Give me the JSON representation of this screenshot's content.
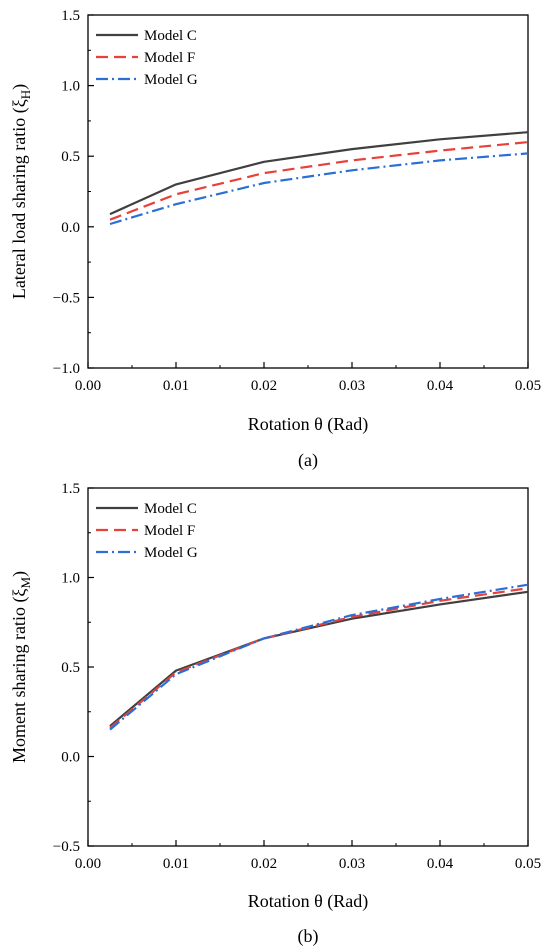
{
  "chart_data": [
    {
      "type": "line",
      "panel_label": "(a)",
      "xlabel": "Rotation θ (Rad)",
      "ylabel": "Lateral load sharing ratio (ξ",
      "ylabel_sub": "H",
      "ylabel_close": ")",
      "xlim": [
        0.0,
        0.05
      ],
      "ylim": [
        -1.0,
        1.5
      ],
      "xticks": [
        "0.00",
        "0.01",
        "0.02",
        "0.03",
        "0.04",
        "0.05"
      ],
      "yticks": [
        "1.5",
        "1.0",
        "0.5",
        "0.0",
        "−0.5",
        "−1.0"
      ],
      "grid": false,
      "legend_position": "top-left",
      "x": [
        0.0025,
        0.01,
        0.02,
        0.03,
        0.04,
        0.05
      ],
      "series": [
        {
          "name": "Model C",
          "color": "#404040",
          "dash": "solid",
          "values": [
            0.09,
            0.3,
            0.46,
            0.55,
            0.62,
            0.67
          ]
        },
        {
          "name": "Model F",
          "color": "#e8403a",
          "dash": "dashed",
          "values": [
            0.05,
            0.23,
            0.38,
            0.47,
            0.54,
            0.6
          ]
        },
        {
          "name": "Model G",
          "color": "#2a6fd6",
          "dash": "dashdot",
          "values": [
            0.02,
            0.16,
            0.31,
            0.4,
            0.47,
            0.52
          ]
        }
      ]
    },
    {
      "type": "line",
      "panel_label": "(b)",
      "xlabel": "Rotation θ (Rad)",
      "ylabel": "Moment sharing ratio (ξ",
      "ylabel_sub": "M",
      "ylabel_close": ")",
      "xlim": [
        0.0,
        0.05
      ],
      "ylim": [
        -0.5,
        1.5
      ],
      "xticks": [
        "0.00",
        "0.01",
        "0.02",
        "0.03",
        "0.04",
        "0.05"
      ],
      "yticks": [
        "1.5",
        "1.0",
        "0.5",
        "0.0",
        "−0.5"
      ],
      "grid": false,
      "legend_position": "top-left",
      "x": [
        0.0025,
        0.01,
        0.02,
        0.03,
        0.04,
        0.05
      ],
      "series": [
        {
          "name": "Model C",
          "color": "#404040",
          "dash": "solid",
          "values": [
            0.17,
            0.48,
            0.66,
            0.77,
            0.85,
            0.92
          ]
        },
        {
          "name": "Model F",
          "color": "#e8403a",
          "dash": "dashed",
          "values": [
            0.16,
            0.47,
            0.66,
            0.78,
            0.87,
            0.94
          ]
        },
        {
          "name": "Model G",
          "color": "#2a6fd6",
          "dash": "dashdot",
          "values": [
            0.15,
            0.46,
            0.66,
            0.79,
            0.88,
            0.96
          ]
        }
      ]
    }
  ]
}
